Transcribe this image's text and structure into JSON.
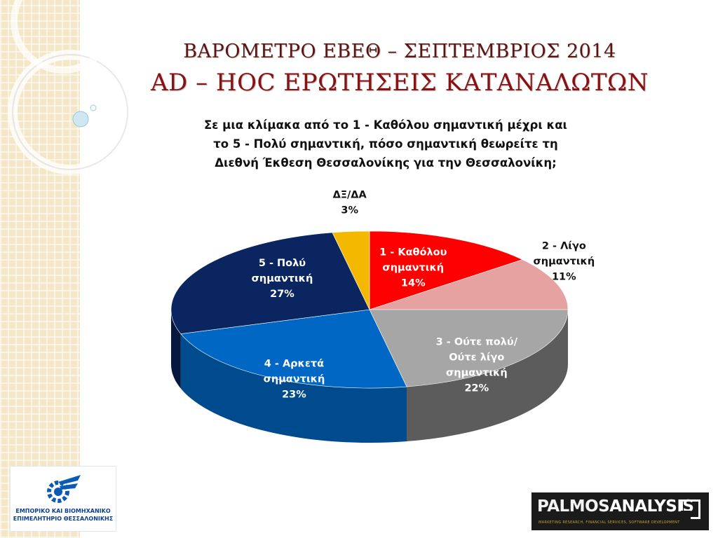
{
  "title_line1": "ΒΑΡΟΜΕΤΡΟ ΕΒΕΘ – ΣΕΠΤΕΜΒΡΙΟΣ 2014",
  "title_line2": "AD – HOC ΕΡΩΤΗΣΕΙΣ ΚΑΤΑΝΑΛΩΤΩΝ",
  "question": "Σε μια κλίμακα από το 1 - Καθόλου σημαντική μέχρι και\nτο 5 - Πολύ σημαντική, πόσο σημαντική θεωρείτε τη\nΔιεθνή Έκθεση Θεσσαλονίκης για την Θεσσαλονίκη;",
  "chart_data": {
    "type": "pie",
    "style": "3d",
    "legend": "none",
    "slices": [
      {
        "label": "1 - Καθόλου σημαντική",
        "label_lines": [
          "1 - Καθόλου",
          "σημαντική"
        ],
        "value": 14,
        "value_text": "14%",
        "color": "#ff0000",
        "side_color": "#b00000",
        "text_color": "#ffffff"
      },
      {
        "label": "2 - Λίγο σημαντική",
        "label_lines": [
          "2 - Λίγο",
          "σημαντική"
        ],
        "value": 11,
        "value_text": "11%",
        "color": "#e6a1a1",
        "side_color": "#a86d6d",
        "text_color": "#111111"
      },
      {
        "label": "3 - Ούτε πολύ/ Ούτε λίγο σημαντική",
        "label_lines": [
          "3 - Ούτε πολύ/",
          "Ούτε λίγο",
          "σημαντική"
        ],
        "value": 22,
        "value_text": "22%",
        "color": "#a6a6a6",
        "side_color": "#5c5c5c",
        "text_color": "#ffffff"
      },
      {
        "label": "4 - Αρκετά σημαντική",
        "label_lines": [
          "4 - Αρκετά",
          "σημαντική"
        ],
        "value": 23,
        "value_text": "23%",
        "color": "#0068c4",
        "side_color": "#004a8e",
        "text_color": "#ffffff"
      },
      {
        "label": "5 - Πολύ σημαντική",
        "label_lines": [
          "5 - Πολύ",
          "σημαντική"
        ],
        "value": 27,
        "value_text": "27%",
        "color": "#0a2560",
        "side_color": "#06183e",
        "text_color": "#ffffff"
      },
      {
        "label": "ΔΞ/ΔΑ",
        "label_lines": [
          "ΔΞ/ΔΑ"
        ],
        "value": 3,
        "value_text": "3%",
        "color": "#f5b800",
        "side_color": "#b58800",
        "text_color": "#111111"
      }
    ]
  },
  "logos": {
    "left_line1": "ΕΜΠΟΡΙΚΟ ΚΑΙ ΒΙΟΜΗΧΑΝΙΚΟ",
    "left_line2": "ΕΠΙΜΕΛΗΤΗΡΙΟ ΘΕΣΣΑΛΟΝΙΚΗΣ",
    "right_brand_part1": "PALMOS",
    "right_brand_part2": "ANALYSIS",
    "right_tagline": "MARKETING RESEARCH, FINANCIAL SERVICES, SOFTWARE DEVELOPMENT"
  }
}
